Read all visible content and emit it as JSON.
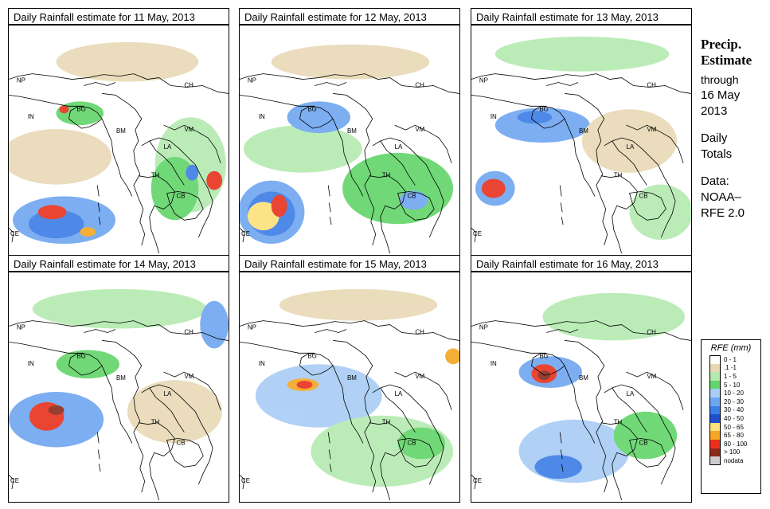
{
  "panels": [
    {
      "title": "Daily Rainfall estimate for  11 May, 2013"
    },
    {
      "title": "Daily Rainfall estimate for  12 May, 2013"
    },
    {
      "title": "Daily Rainfall estimate for  13 May, 2013"
    },
    {
      "title": "Daily Rainfall estimate for  14 May, 2013"
    },
    {
      "title": "Daily Rainfall estimate for  15 May, 2013"
    },
    {
      "title": "Daily Rainfall estimate for  16 May, 2013"
    }
  ],
  "country_labels": {
    "NP": "NP",
    "CH": "CH",
    "IN": "IN",
    "BG": "BG",
    "BM": "BM",
    "VM": "VM",
    "LA": "LA",
    "TH": "TH",
    "CB": "CB",
    "CE": "CE"
  },
  "side_panel": {
    "heading_line1": "Precip.",
    "heading_line2": "Estimate",
    "through": "through",
    "date_line1": "16 May",
    "date_line2": "2013",
    "totals_line1": "Daily",
    "totals_line2": "Totals",
    "data_line1": "Data:",
    "data_line2": "NOAA–",
    "data_line3": "RFE 2.0"
  },
  "legend": {
    "title": "RFE (mm)",
    "items": [
      {
        "label": "0 - 1",
        "color": "#ffffff"
      },
      {
        "label": ".1 -1",
        "color": "#e8d9b5"
      },
      {
        "label": "1 - 5",
        "color": "#b4eab0"
      },
      {
        "label": "5 - 10",
        "color": "#62d46a"
      },
      {
        "label": "10 - 20",
        "color": "#a8cdf5"
      },
      {
        "label": "20 - 30",
        "color": "#6ea6f0"
      },
      {
        "label": "30 - 40",
        "color": "#3c7de6"
      },
      {
        "label": "40 - 50",
        "color": "#1f4fcc"
      },
      {
        "label": "50 - 65",
        "color": "#fce27a"
      },
      {
        "label": "65 - 80",
        "color": "#f5a623"
      },
      {
        "label": "80 - 100",
        "color": "#e8301c"
      },
      {
        "label": "> 100",
        "color": "#8b2a1a"
      },
      {
        "label": "nodata",
        "color": "#cccccc"
      }
    ]
  }
}
